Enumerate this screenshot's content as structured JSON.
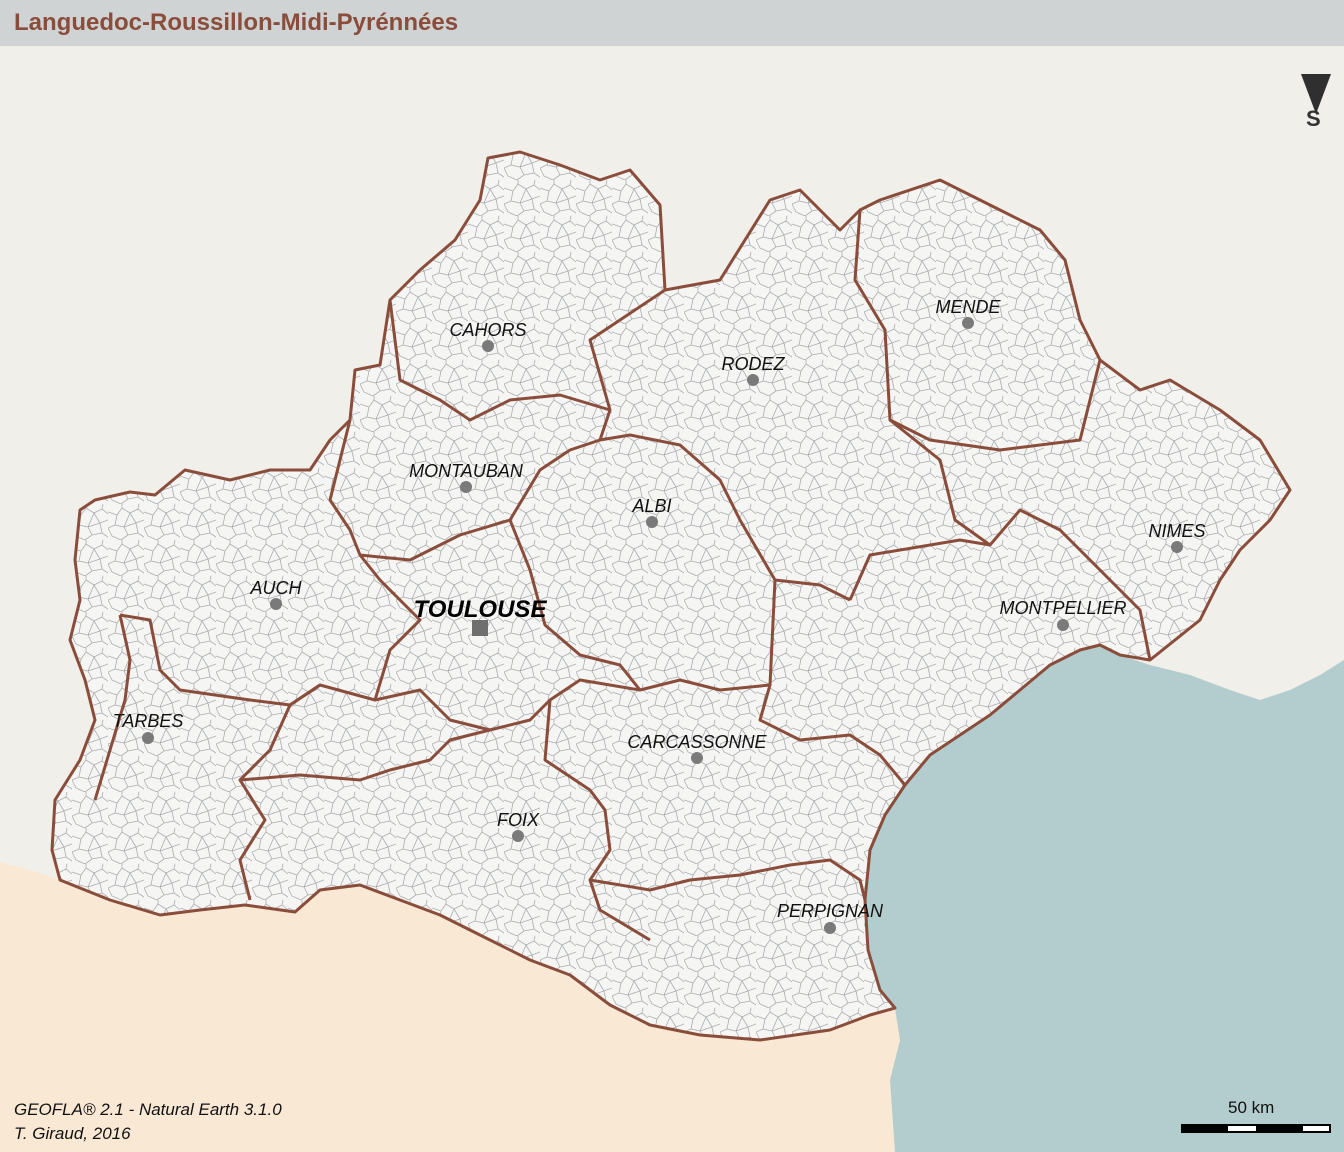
{
  "title": "Languedoc-Roussillon-Midi-Pyrénnées",
  "cities": [
    {
      "id": "cahors",
      "name": "CAHORS",
      "capital": false
    },
    {
      "id": "rodez",
      "name": "RODEZ",
      "capital": false
    },
    {
      "id": "mende",
      "name": "MENDE",
      "capital": false
    },
    {
      "id": "montauban",
      "name": "MONTAUBAN",
      "capital": false
    },
    {
      "id": "albi",
      "name": "ALBI",
      "capital": false
    },
    {
      "id": "nimes",
      "name": "NIMES",
      "capital": false
    },
    {
      "id": "auch",
      "name": "AUCH",
      "capital": false
    },
    {
      "id": "toulouse",
      "name": "TOULOUSE",
      "capital": true
    },
    {
      "id": "montpellier",
      "name": "MONTPELLIER",
      "capital": false
    },
    {
      "id": "tarbes",
      "name": "TARBES",
      "capital": false
    },
    {
      "id": "carcassonne",
      "name": "CARCASSONNE",
      "capital": false
    },
    {
      "id": "foix",
      "name": "FOIX",
      "capital": false
    },
    {
      "id": "perpignan",
      "name": "PERPIGNAN",
      "capital": false
    }
  ],
  "north_arrow": {
    "letter": "S"
  },
  "scale": {
    "label": "50 km"
  },
  "source": {
    "line1": "GEOFLA® 2.1 - Natural Earth 3.1.0",
    "line2": "T. Giraud, 2016"
  },
  "colors": {
    "background": "#f1efe9",
    "spain": "#f9e8d4",
    "sea": "#b3cdce",
    "region_fill": "#f5f5f3",
    "department_border": "#8b4d3b",
    "commune_border": "#a9adb0",
    "header": "#cfd3d4",
    "title": "#8b4d3b"
  }
}
